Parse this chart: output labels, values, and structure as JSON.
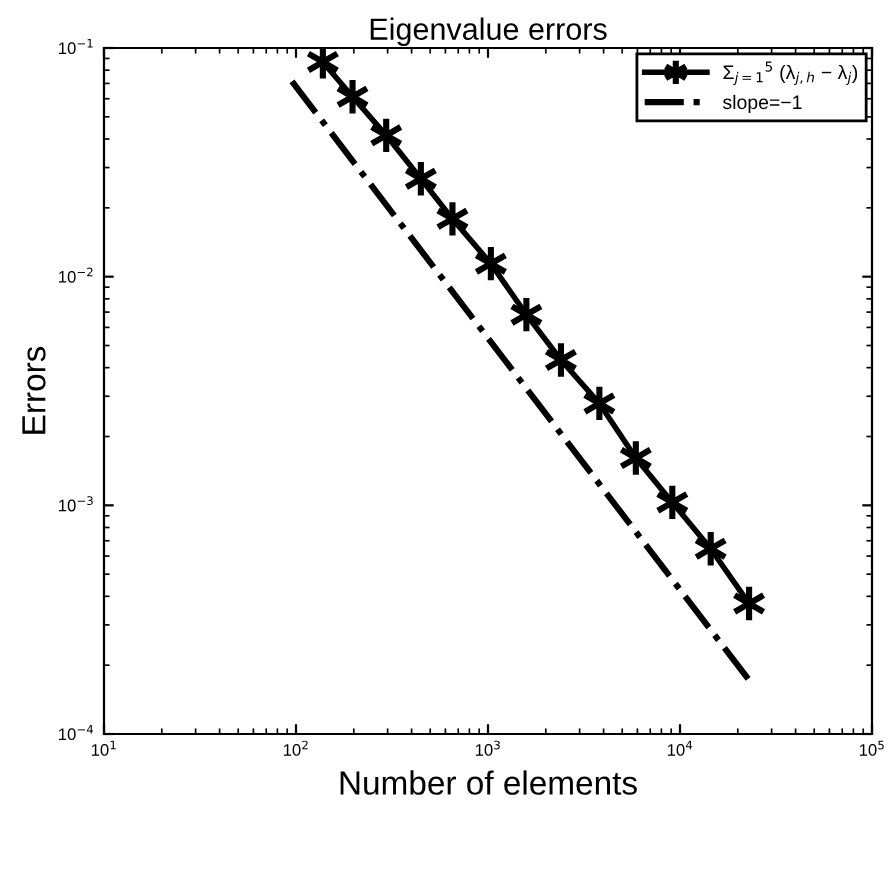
{
  "chart_data": {
    "type": "line",
    "title": "Eigenvalue errors",
    "xlabel": "Number of elements",
    "ylabel": "Errors",
    "log": "xy",
    "grid": false,
    "legend": "top right",
    "xlim": [
      10,
      100000
    ],
    "ylim": [
      0.0001,
      0.1
    ],
    "xticks": [
      {
        "value": 10,
        "label": "10$^{1}$"
      },
      {
        "value": 100,
        "label": "10$^{2}$"
      },
      {
        "value": 1000,
        "label": "10$^{3}$"
      },
      {
        "value": 10000,
        "label": "10$^{4}$"
      },
      {
        "value": 100000,
        "label": "10$^{5}$"
      }
    ],
    "yticks": [
      {
        "value": 0.0001,
        "label": "10$^{−4}$"
      },
      {
        "value": 0.001,
        "label": "10$^{−3}$"
      },
      {
        "value": 0.01,
        "label": "10$^{−2}$"
      },
      {
        "value": 0.1,
        "label": "10$^{−1}$"
      }
    ],
    "series": [
      {
        "name": "Σ$_{j=1}$$^{5}$ (λ$_{j,h}$ − λ$_{j}$)",
        "color": "#000000",
        "marker": "cross",
        "line_style": "solid",
        "x": [
          138,
          197,
          295,
          447,
          653,
          1035,
          1585,
          2399,
          3802,
          5888,
          9120,
          14450,
          22900
        ],
        "values": [
          0.0869,
          0.0612,
          0.0415,
          0.0268,
          0.0179,
          0.0114,
          0.00682,
          0.00432,
          0.00279,
          0.00161,
          0.00103,
          0.000646,
          0.000372
        ]
      },
      {
        "name": "slope=−1",
        "color": "#000000",
        "marker": "none",
        "line_style": "dashdot",
        "x": [
          95.3,
          22900
        ],
        "values": [
          0.0714,
          0.000172
        ]
      }
    ]
  }
}
